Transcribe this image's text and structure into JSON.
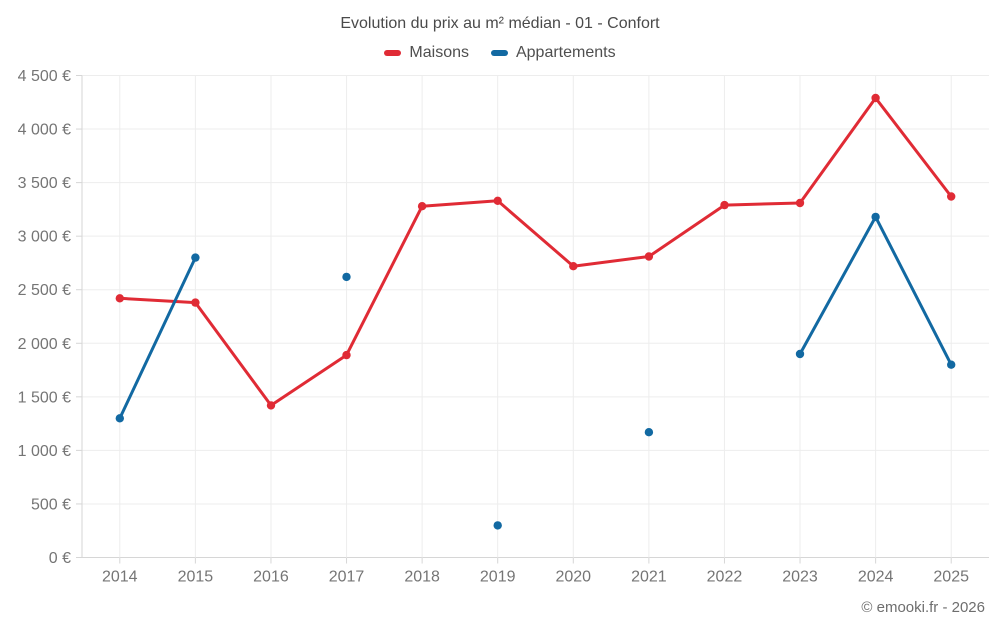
{
  "title": "Evolution du prix au m² médian - 01 - Confort",
  "legend": [
    {
      "label": "Maisons",
      "color": "#e02b35"
    },
    {
      "label": "Appartements",
      "color": "#1269a2"
    }
  ],
  "footer": "© emooki.fr - 2026",
  "colors": {
    "grid": "#ededed",
    "axis": "#d6d6d6",
    "tick_label": "#757575",
    "maisons": "#e02b35",
    "appartements": "#1269a2"
  },
  "chart_data": {
    "type": "line",
    "title": "Evolution du prix au m² médian - 01 - Confort",
    "categories": [
      "2014",
      "2015",
      "2016",
      "2017",
      "2018",
      "2019",
      "2020",
      "2021",
      "2022",
      "2023",
      "2024",
      "2025"
    ],
    "series": [
      {
        "name": "Maisons",
        "color": "#e02b35",
        "values": [
          2420,
          2380,
          1420,
          1890,
          3280,
          3330,
          2720,
          2810,
          3290,
          3310,
          4290,
          3370
        ]
      },
      {
        "name": "Appartements",
        "color": "#1269a2",
        "values": [
          1300,
          2800,
          null,
          2620,
          null,
          300,
          null,
          1170,
          null,
          1900,
          3180,
          1800
        ]
      }
    ],
    "ylim": [
      0,
      4500
    ],
    "ytick_step": 500,
    "ytick_labels": [
      "0 €",
      "500 €",
      "1 000 €",
      "1 500 €",
      "2 000 €",
      "2 500 €",
      "3 000 €",
      "3 500 €",
      "4 000 €",
      "4 500 €"
    ],
    "xlabel": "",
    "ylabel": "",
    "grid": true,
    "legend_position": "top"
  }
}
